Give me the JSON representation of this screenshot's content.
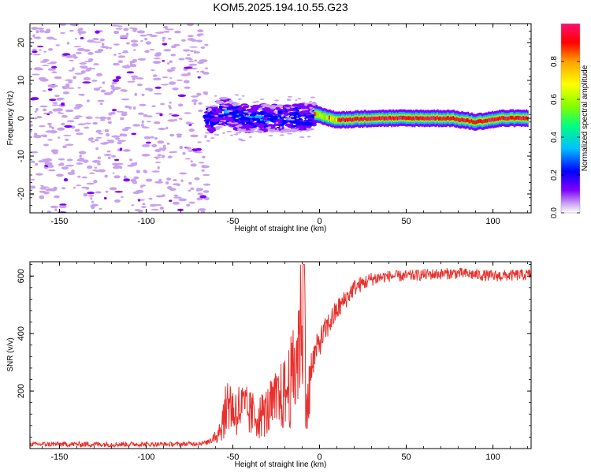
{
  "figure": {
    "title": "KOM5.2025.194.10.55.G23"
  },
  "chart_data": [
    {
      "type": "heatmap",
      "xlabel": "Height of straight line (km)",
      "ylabel": "Frequency (Hz)",
      "xlim": [
        -167,
        122
      ],
      "ylim": [
        -25,
        25
      ],
      "xticks": [
        -150,
        -100,
        -50,
        0,
        50,
        100
      ],
      "yticks": [
        -20,
        -10,
        0,
        10,
        20
      ],
      "xtick_labels": [
        "-150",
        "-100",
        "-50",
        "0",
        "50",
        "100"
      ],
      "ytick_labels": [
        "-20",
        "-10",
        "0",
        "10",
        "20"
      ],
      "colorbar": {
        "label": "Normalized spectral amplitude",
        "range": [
          0,
          1
        ],
        "ticks": [
          0.0,
          0.2,
          0.4,
          0.6,
          0.8
        ],
        "tick_labels": [
          "0.0",
          "0.2",
          "0.4",
          "0.6",
          "0.8"
        ],
        "colors": [
          "#ffffff",
          "#c9a0f0",
          "#7f00ff",
          "#0000ff",
          "#00c0ff",
          "#00ff80",
          "#80ff00",
          "#ffff00",
          "#ffa000",
          "#ff0000",
          "#ff1070"
        ]
      },
      "regions": [
        {
          "x_range": [
            -167,
            -65
          ],
          "freq_range": [
            -25,
            25
          ],
          "amplitude": 0.08,
          "description_type": "noise"
        },
        {
          "x_range": [
            -65,
            -3
          ],
          "freq_center": [
            [
              -65,
              -1
            ],
            [
              -55,
              2
            ],
            [
              -45,
              0
            ],
            [
              -30,
              0
            ],
            [
              -15,
              0
            ],
            [
              -3,
              0.5
            ]
          ],
          "amplitude": 0.25
        },
        {
          "x_range": [
            -3,
            120
          ],
          "freq_center": [
            [
              -3,
              1
            ],
            [
              10,
              -0.5
            ],
            [
              30,
              0
            ],
            [
              50,
              0
            ],
            [
              75,
              0
            ],
            [
              90,
              -1
            ],
            [
              105,
              0
            ],
            [
              120,
              0
            ]
          ],
          "amplitude": 0.85
        }
      ]
    },
    {
      "type": "line",
      "xlabel": "Height of straight line (km)",
      "ylabel": "SNR (v/v)",
      "xlim": [
        -167,
        122
      ],
      "ylim": [
        0,
        650
      ],
      "xticks": [
        -150,
        -100,
        -50,
        0,
        50,
        100
      ],
      "yticks": [
        200,
        400,
        600
      ],
      "xtick_labels": [
        "-150",
        "-100",
        "-50",
        "0",
        "50",
        "100"
      ],
      "ytick_labels": [
        "200",
        "400",
        "600"
      ],
      "series": [
        {
          "color": "#e8302c",
          "x": [
            -167,
            -130,
            -100,
            -80,
            -65,
            -58,
            -55,
            -52,
            -50,
            -45,
            -40,
            -35,
            -30,
            -25,
            -20,
            -15,
            -12,
            -10,
            -9,
            -8,
            -7,
            -5,
            0,
            5,
            10,
            20,
            30,
            40,
            50,
            60,
            80,
            100,
            122
          ],
          "y": [
            15,
            15,
            15,
            15,
            20,
            60,
            110,
            180,
            130,
            140,
            120,
            110,
            130,
            160,
            190,
            250,
            360,
            560,
            640,
            260,
            120,
            290,
            370,
            430,
            480,
            560,
            590,
            600,
            600,
            605,
            610,
            600,
            605
          ],
          "noise": [
            8,
            10,
            8,
            8,
            8,
            40,
            60,
            80,
            70,
            70,
            70,
            70,
            70,
            80,
            80,
            90,
            100,
            90,
            0,
            80,
            60,
            60,
            50,
            45,
            40,
            30,
            25,
            20,
            20,
            20,
            20,
            20,
            20
          ]
        }
      ]
    }
  ]
}
